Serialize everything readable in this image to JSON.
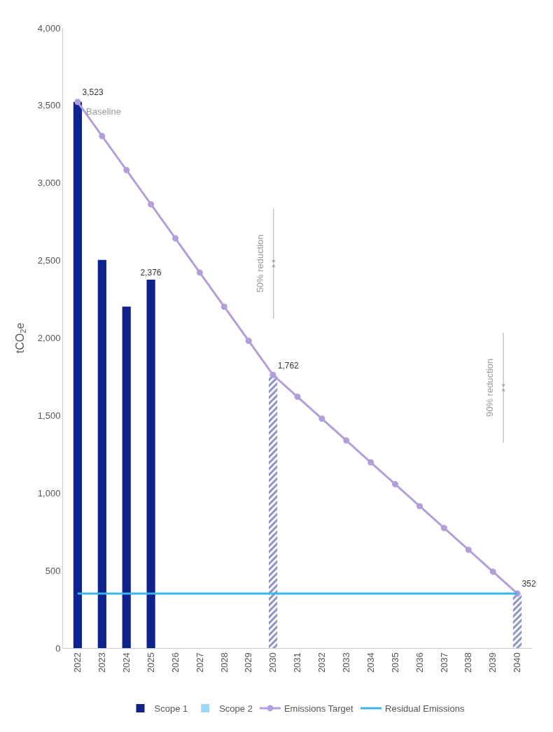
{
  "chart_data": {
    "type": "bar",
    "ylabel": "tCO$_{2}$e",
    "categories": [
      "2022",
      "2023",
      "2024",
      "2025",
      "2026",
      "2027",
      "2028",
      "2029",
      "2030",
      "2031",
      "2032",
      "2033",
      "2034",
      "2035",
      "2036",
      "2037",
      "2038",
      "2039",
      "2040"
    ],
    "series": [
      {
        "name": "Scope 1",
        "color": "#0f238f",
        "values": [
          3523,
          2504,
          2203,
          2376,
          null,
          null,
          null,
          null,
          null,
          null,
          null,
          null,
          null,
          null,
          null,
          null,
          null,
          null,
          null
        ],
        "value_labels": [
          null,
          null,
          null,
          "2,376",
          null,
          null,
          null,
          null,
          null,
          null,
          null,
          null,
          null,
          null,
          null,
          null,
          null,
          null,
          null
        ]
      },
      {
        "color": "#0f238f",
        "values": [
          null,
          null,
          null,
          null,
          null,
          null,
          null,
          null,
          1762,
          null,
          null,
          null,
          null,
          null,
          null,
          null,
          null,
          null,
          352
        ]
      },
      {
        "name": "Scope 2",
        "color": "#9fd8f2",
        "values": [
          null,
          null,
          null,
          null,
          null,
          null,
          null,
          null,
          null,
          null,
          null,
          null,
          null,
          null,
          null,
          null,
          null,
          null,
          null
        ]
      },
      {
        "name": "Emissions Target",
        "type": "line",
        "color": "#b39ddb",
        "marker": "circle",
        "values": [
          3523,
          3303,
          3083,
          2863,
          2643,
          2422,
          2202,
          1982,
          1762,
          1621,
          1480,
          1339,
          1198,
          1057,
          916,
          775,
          634,
          493,
          352
        ],
        "value_labels": [
          "3,523",
          null,
          null,
          null,
          null,
          null,
          null,
          null,
          "1,762",
          null,
          null,
          null,
          null,
          null,
          null,
          null,
          null,
          null,
          "352"
        ]
      },
      {
        "name": "Residual Emissions",
        "type": "line",
        "color": "#3cb4ec",
        "marker": "none",
        "values": [
          352,
          352,
          352,
          352,
          352,
          352,
          352,
          352,
          352,
          352,
          352,
          352,
          352,
          352,
          352,
          352,
          352,
          352,
          352
        ]
      }
    ],
    "annotations": [
      {
        "text": "Baseline",
        "x": "2022",
        "y": 3523
      },
      "50% reduction",
      "90% reduction"
    ],
    "ylim": [
      0,
      4000
    ],
    "yticks": [
      0,
      500,
      {
        "value": 1000,
        "label": "1,000"
      },
      {
        "value": 1500,
        "label": "1,500"
      },
      {
        "value": 2000,
        "label": "2,000"
      },
      {
        "value": 2500,
        "label": "2,500"
      },
      {
        "value": 3000,
        "label": "3,000"
      },
      {
        "value": 3500,
        "label": "3,500"
      },
      {
        "value": 4000,
        "label": "4,000"
      }
    ],
    "legend": "bottom"
  }
}
